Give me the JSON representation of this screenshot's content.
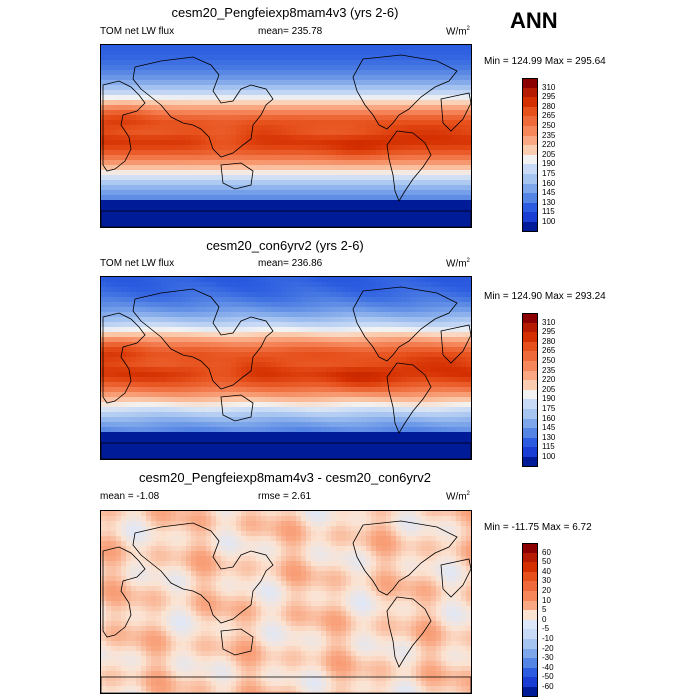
{
  "season_label": "ANN",
  "panels": [
    {
      "title": "cesm20_Pengfeiexp8mam4v3 (yrs 2-6)",
      "left_label": "TOM net LW flux",
      "center_label": "mean=  235.78",
      "units": "W/m",
      "units_sup": "2",
      "minmax": "Min = 124.99 Max = 295.64",
      "kind": "abs"
    },
    {
      "title": "cesm20_con6yrv2 (yrs 2-6)",
      "left_label": "TOM net LW flux",
      "center_label": "mean=  236.86",
      "units": "W/m",
      "units_sup": "2",
      "minmax": "Min = 124.90 Max = 293.24",
      "kind": "abs"
    },
    {
      "title": "cesm20_Pengfeiexp8mam4v3 - cesm20_con6yrv2",
      "left_label": "mean =  -1.08",
      "center_label": "rmse =   2.61",
      "units": "W/m",
      "units_sup": "2",
      "minmax": "Min = -11.75 Max =   6.72",
      "kind": "diff"
    }
  ],
  "colorbars": {
    "abs": {
      "labels": [
        "310",
        "295",
        "280",
        "265",
        "250",
        "235",
        "220",
        "205",
        "190",
        "175",
        "160",
        "145",
        "130",
        "115",
        "100"
      ],
      "colors": [
        "#8b0000",
        "#b51b00",
        "#d42f00",
        "#e6501b",
        "#ee6a3a",
        "#f5875b",
        "#f9a883",
        "#fbcdb0",
        "#f2f2f2",
        "#c8daf5",
        "#a6c4f0",
        "#7ea6ea",
        "#5585e4",
        "#2c5de0",
        "#1a3ed4",
        "#001b98"
      ]
    },
    "diff": {
      "labels": [
        "60",
        "50",
        "40",
        "30",
        "20",
        "10",
        "5",
        "0",
        "-5",
        "-10",
        "-20",
        "-30",
        "-40",
        "-50",
        "-60"
      ],
      "colors": [
        "#8b0000",
        "#b51b00",
        "#d42f00",
        "#e6501b",
        "#ee6a3a",
        "#f5875b",
        "#f9a883",
        "#fbe3d2",
        "#dde8fa",
        "#c8daf5",
        "#a6c4f0",
        "#7ea6ea",
        "#5585e4",
        "#2c5de0",
        "#1a3ed4",
        "#001b98"
      ]
    }
  }
}
